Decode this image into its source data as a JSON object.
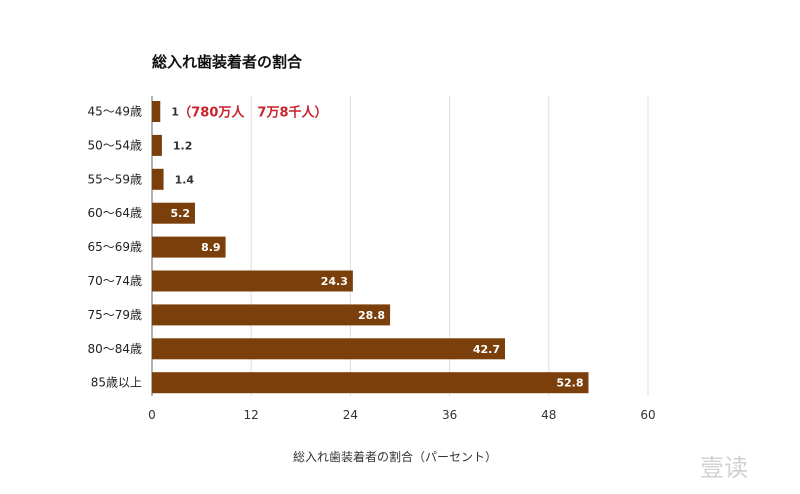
{
  "chart_data": {
    "type": "bar",
    "orientation": "horizontal",
    "title": "総入れ歯装着者の割合",
    "xlabel": "総入れ歯装着者の割合（パーセント）",
    "ylabel": "",
    "categories": [
      "45〜49歳",
      "50〜54歳",
      "55〜59歳",
      "60〜64歳",
      "65〜69歳",
      "70〜74歳",
      "75〜79歳",
      "80〜84歳",
      "85歳以上"
    ],
    "values": [
      1,
      1.2,
      1.4,
      5.2,
      8.9,
      24.3,
      28.8,
      42.7,
      52.8
    ],
    "value_labels": [
      "1",
      "1.2",
      "1.4",
      "5.2",
      "8.9",
      "24.3",
      "28.8",
      "42.7",
      "52.8"
    ],
    "xlim": [
      0,
      60
    ],
    "xticks": [
      "0",
      "12",
      "24",
      "36",
      "48",
      "60"
    ],
    "grid": true,
    "bar_color": "#7a3f0b",
    "annotation": {
      "category_index": 0,
      "text": "（780万人　7万8千人）",
      "color": "#c8232c"
    }
  },
  "watermark": "壹读"
}
